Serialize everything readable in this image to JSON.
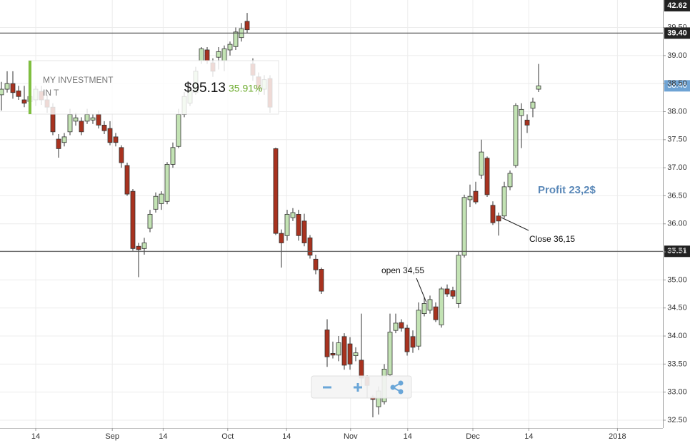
{
  "chart_data": {
    "type": "candlestick",
    "open": [
      38.3,
      38.4,
      38.5,
      38.37,
      38.21,
      38.18,
      38.21,
      38.36,
      38.21,
      38.08,
      37.51,
      37.45,
      37.64,
      37.83,
      37.83,
      37.83,
      37.85,
      37.95,
      37.76,
      37.7,
      37.55,
      37.36,
      37.04,
      36.58,
      35.6,
      35.56,
      35.92,
      36.26,
      36.36,
      36.4,
      37.06,
      37.38,
      37.95,
      38.15,
      38.34,
      38.91,
      39.1,
      38.87,
      38.97,
      38.91,
      39.1,
      39.16,
      39.32,
      39.61,
      38.85,
      38.62,
      38.4,
      38.59,
      37.34,
      35.83,
      35.79,
      36.11,
      36.17,
      36.05,
      35.75,
      35.37,
      35.19,
      34.11,
      33.69,
      33.66,
      33.99,
      33.86,
      33.65,
      33.57,
      33.27,
      32.91,
      32.74,
      32.83,
      33.31,
      34.1,
      34.24,
      34.14,
      33.99,
      33.82,
      34.4,
      34.46,
      34.52,
      34.2,
      34.84,
      34.81,
      34.58,
      35.44,
      36.43,
      36.58,
      36.87,
      37.17,
      36.33,
      36.14,
      36.14,
      36.66,
      37.04,
      37.93,
      37.85,
      38.06,
      38.4
    ],
    "high": [
      38.53,
      38.72,
      38.72,
      38.46,
      38.46,
      38.35,
      38.46,
      38.46,
      38.3,
      38.15,
      37.6,
      37.62,
      38.05,
      37.98,
      37.9,
      38.05,
      37.95,
      38.02,
      37.83,
      37.83,
      37.62,
      37.4,
      37.09,
      36.62,
      35.66,
      35.75,
      36.25,
      36.56,
      36.58,
      37.1,
      37.45,
      38.05,
      38.35,
      38.5,
      38.8,
      39.15,
      39.15,
      38.95,
      39.15,
      39.18,
      39.25,
      39.5,
      39.58,
      39.76,
      38.95,
      38.7,
      38.65,
      38.65,
      37.36,
      35.9,
      36.25,
      36.28,
      36.25,
      36.18,
      35.8,
      35.45,
      35.22,
      34.3,
      33.9,
      34.0,
      34.05,
      33.98,
      33.8,
      34.4,
      33.3,
      32.95,
      33.1,
      33.5,
      34.4,
      34.4,
      34.3,
      34.2,
      34.1,
      34.6,
      34.7,
      34.72,
      34.6,
      34.88,
      34.92,
      34.88,
      35.5,
      36.52,
      36.7,
      36.75,
      37.5,
      37.2,
      36.4,
      36.2,
      36.75,
      36.95,
      38.15,
      38.15,
      37.95,
      38.25,
      38.85
    ],
    "low": [
      38.02,
      38.34,
      38.23,
      38.21,
      38.08,
      38.1,
      38.1,
      38.12,
      37.98,
      37.58,
      37.18,
      37.38,
      37.58,
      37.75,
      37.58,
      37.78,
      37.78,
      37.7,
      37.6,
      37.4,
      37.38,
      37.0,
      36.5,
      35.52,
      35.05,
      35.45,
      35.85,
      36.2,
      36.25,
      36.35,
      37.0,
      37.35,
      37.9,
      38.1,
      38.3,
      38.85,
      38.85,
      38.62,
      38.75,
      38.72,
      39.0,
      39.1,
      39.25,
      39.4,
      38.55,
      38.3,
      38.3,
      37.98,
      35.8,
      35.22,
      35.7,
      36.05,
      35.7,
      35.6,
      35.38,
      35.1,
      34.75,
      33.45,
      33.6,
      33.55,
      33.4,
      33.4,
      33.55,
      33.1,
      32.9,
      32.55,
      32.6,
      32.78,
      33.28,
      34.05,
      34.08,
      33.65,
      33.7,
      33.75,
      34.35,
      34.4,
      34.25,
      34.15,
      34.7,
      34.66,
      34.5,
      35.4,
      36.3,
      36.35,
      36.8,
      36.48,
      35.98,
      35.79,
      36.1,
      36.6,
      37.0,
      37.35,
      37.62,
      37.9,
      38.35
    ],
    "close": [
      38.4,
      38.5,
      38.34,
      38.27,
      38.15,
      38.27,
      38.4,
      38.21,
      38.08,
      37.64,
      37.34,
      37.55,
      37.95,
      37.89,
      37.64,
      37.95,
      37.89,
      37.76,
      37.66,
      37.45,
      37.45,
      37.09,
      36.53,
      35.56,
      35.54,
      35.66,
      36.17,
      36.49,
      36.53,
      37.06,
      37.36,
      37.95,
      38.27,
      38.4,
      38.72,
      39.12,
      38.91,
      38.72,
      39.07,
      39.12,
      39.2,
      39.42,
      39.48,
      39.46,
      38.65,
      38.4,
      38.57,
      38.08,
      35.83,
      35.66,
      36.17,
      36.2,
      35.79,
      35.66,
      35.44,
      35.18,
      34.8,
      33.63,
      33.66,
      33.88,
      33.48,
      33.5,
      33.7,
      33.25,
      33.12,
      32.87,
      33.02,
      33.41,
      34.07,
      34.23,
      34.14,
      33.72,
      33.8,
      34.46,
      34.58,
      34.65,
      34.29,
      34.84,
      34.75,
      34.71,
      35.44,
      36.47,
      36.49,
      36.39,
      37.28,
      36.52,
      36.02,
      36.05,
      36.66,
      36.9,
      38.11,
      38.04,
      37.76,
      38.17,
      38.46
    ],
    "up_color": "#c3e3b4",
    "down_color": "#a8321f",
    "xlim": [
      -0.25,
      115.75
    ],
    "xticks": [
      {
        "value": 6,
        "label": "14"
      },
      {
        "value": 19.4,
        "label": "Sep"
      },
      {
        "value": 28.3,
        "label": "14"
      },
      {
        "value": 39.6,
        "label": "Oct"
      },
      {
        "value": 49.9,
        "label": "14"
      },
      {
        "value": 61.1,
        "label": "Nov"
      },
      {
        "value": 71.1,
        "label": "14"
      },
      {
        "value": 82.5,
        "label": "Dec"
      },
      {
        "value": 92.3,
        "label": "14"
      },
      {
        "value": 107.8,
        "label": "2018"
      }
    ],
    "ylim": [
      32.36,
      39.99
    ],
    "yticks": [
      {
        "value": 32.5,
        "label": "32.50"
      },
      {
        "value": 33,
        "label": "33.00"
      },
      {
        "value": 33.5,
        "label": "33.50"
      },
      {
        "value": 34,
        "label": "34.00"
      },
      {
        "value": 34.5,
        "label": "34.50"
      },
      {
        "value": 35,
        "label": "35.00"
      },
      {
        "value": 35.5,
        "label": "35.50"
      },
      {
        "value": 36,
        "label": "36.00"
      },
      {
        "value": 36.5,
        "label": "36.50"
      },
      {
        "value": 37,
        "label": "37.00"
      },
      {
        "value": 37.5,
        "label": "37.50"
      },
      {
        "value": 38,
        "label": "38.00"
      },
      {
        "value": 38.5,
        "label": "38.50"
      },
      {
        "value": 39,
        "label": "39.00"
      },
      {
        "value": 39.5,
        "label": "39.50"
      }
    ],
    "grid": true,
    "levels": [
      {
        "value": 39.4,
        "label": "39.40"
      },
      {
        "value": 35.51,
        "label": "35.51"
      }
    ],
    "last_price": {
      "value": 38.46,
      "label": "38.46"
    },
    "top_price_label": "42.62",
    "annotations": [
      "open 34,55",
      "Close 36,15",
      "Profit 23,2$"
    ],
    "investment": {
      "title": "MY INVESTMENT",
      "ticker": "IN T",
      "value": "$95.13",
      "change": "35.91%"
    }
  }
}
